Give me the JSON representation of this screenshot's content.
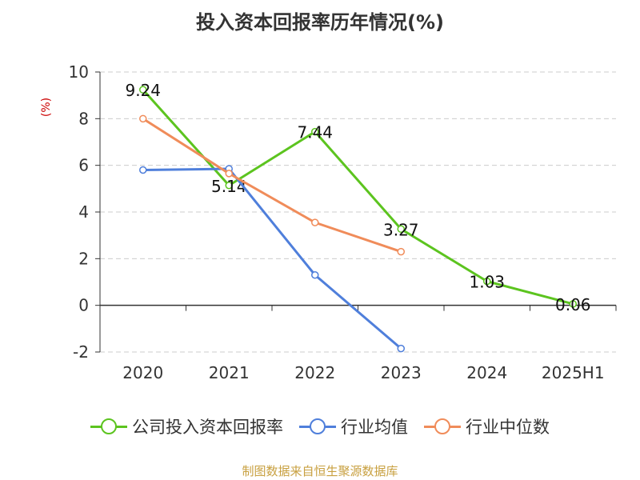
{
  "chart_data": {
    "type": "line",
    "title": "投入资本回报率历年情况(%)",
    "ylabel": "(%)",
    "categories": [
      "2020",
      "2021",
      "2022",
      "2023",
      "2024",
      "2025H1"
    ],
    "ylim": [
      -2,
      10
    ],
    "yticks": [
      -2,
      0,
      2,
      4,
      6,
      8,
      10
    ],
    "grid": true,
    "legend_position": "bottom",
    "series": [
      {
        "name": "公司投入资本回报率",
        "color": "#5cc41f",
        "values": [
          9.24,
          5.14,
          7.44,
          3.27,
          1.03,
          0.06
        ],
        "labels": [
          "9.24",
          "5.14",
          "7.44",
          "3.27",
          "1.03",
          "0.06"
        ]
      },
      {
        "name": "行业均值",
        "color": "#4f7fdb",
        "values": [
          5.8,
          5.85,
          1.3,
          -1.85,
          null,
          null
        ]
      },
      {
        "name": "行业中位数",
        "color": "#f08c5a",
        "values": [
          8.0,
          5.65,
          3.55,
          2.3,
          null,
          null
        ]
      }
    ]
  },
  "source": "制图数据来自恒生聚源数据库"
}
